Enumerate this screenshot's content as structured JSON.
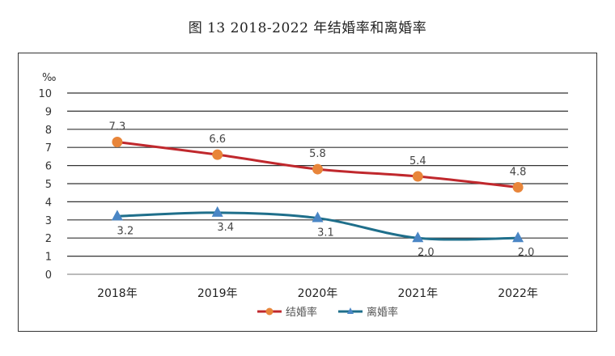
{
  "title": "图 13    2018-2022 年结婚率和离婚率",
  "chart_data": {
    "type": "line",
    "title": "图 13    2018-2022 年结婚率和离婚率",
    "ylabel": "‰",
    "categories": [
      "2018年",
      "2019年",
      "2020年",
      "2021年",
      "2022年"
    ],
    "ylim": [
      0,
      10
    ],
    "yticks": [
      0,
      1,
      2,
      3,
      4,
      5,
      6,
      7,
      8,
      9,
      10
    ],
    "grid": true,
    "legend_position": "bottom",
    "series": [
      {
        "name": "结婚率",
        "values": [
          7.3,
          6.6,
          5.8,
          5.4,
          4.8
        ],
        "color": "#c0282d",
        "marker": "circle",
        "marker_color": "#e8853a",
        "label_position": "above"
      },
      {
        "name": "离婚率",
        "values": [
          3.2,
          3.4,
          3.1,
          2.0,
          2.0
        ],
        "color": "#1f6f8b",
        "marker": "triangle",
        "marker_color": "#4a86c5",
        "label_position": "below"
      }
    ]
  }
}
